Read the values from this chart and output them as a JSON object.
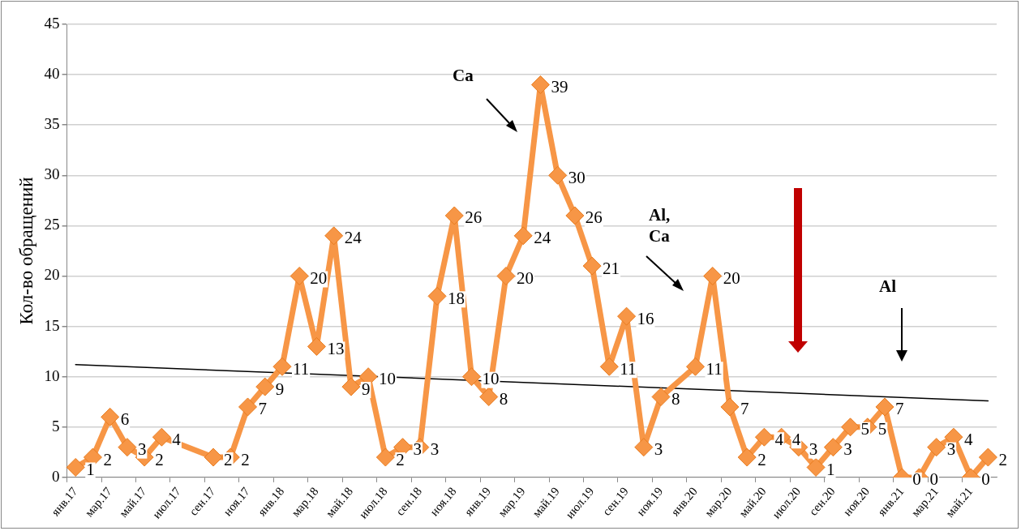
{
  "chart_data": {
    "type": "line",
    "ylabel": "Кол-во обращений",
    "categories": [
      "янв.17",
      null,
      "мар.17",
      null,
      "май.17",
      null,
      "июл.17",
      null,
      "сен.17",
      null,
      "ноя.17",
      null,
      "янв.18",
      null,
      "мар.18",
      null,
      "май.18",
      null,
      "июл.18",
      null,
      "сен.18",
      null,
      "ноя.18",
      null,
      "янв.19",
      null,
      "мар.19",
      null,
      "май.19",
      null,
      "июл.19",
      null,
      "сен.19",
      null,
      "ноя.19",
      null,
      "янв.20",
      null,
      "мар.20",
      null,
      "май.20",
      null,
      "июл.20",
      null,
      "сен.20",
      null,
      "ноя.20",
      null,
      "янв.21",
      null,
      "мар.21",
      null,
      "май.21",
      null
    ],
    "series": [
      {
        "color": "#f79646",
        "marker": "diamond",
        "data_labels": true,
        "values": [
          1,
          2,
          6,
          3,
          2,
          4,
          null,
          null,
          2,
          2,
          7,
          9,
          11,
          20,
          13,
          24,
          9,
          10,
          2,
          3,
          3,
          18,
          26,
          10,
          8,
          20,
          24,
          39,
          30,
          26,
          21,
          11,
          16,
          3,
          8,
          null,
          11,
          20,
          7,
          2,
          4,
          4,
          3,
          1,
          3,
          5,
          5,
          7,
          0,
          0,
          3,
          4,
          0,
          2
        ]
      },
      {
        "type": "line",
        "color": "#000000",
        "marker": "none",
        "values": [
          11.2,
          null,
          null,
          null,
          null,
          null,
          null,
          null,
          null,
          null,
          null,
          null,
          null,
          null,
          null,
          null,
          null,
          null,
          null,
          null,
          null,
          null,
          null,
          null,
          null,
          null,
          null,
          null,
          null,
          null,
          null,
          null,
          null,
          null,
          null,
          null,
          null,
          null,
          null,
          null,
          null,
          null,
          null,
          null,
          null,
          null,
          null,
          null,
          null,
          null,
          null,
          null,
          null,
          7.6
        ]
      }
    ],
    "ylim": [
      0,
      45
    ],
    "yticks": [
      0,
      5,
      10,
      15,
      20,
      25,
      30,
      35,
      40,
      45
    ],
    "grid": "y",
    "legend": false,
    "annotations": [
      "Ca",
      "Al, Ca",
      "Al"
    ]
  }
}
